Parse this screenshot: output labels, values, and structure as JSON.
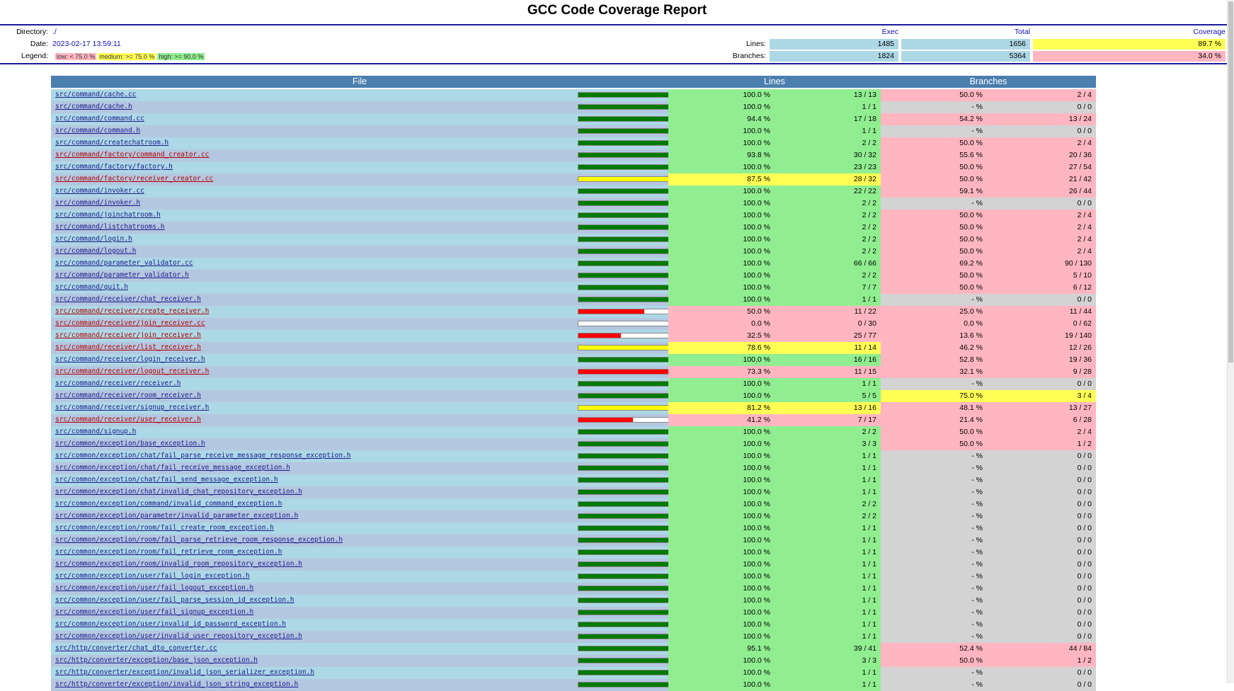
{
  "title": "GCC Code Coverage Report",
  "summary": {
    "directory_label": "Directory:",
    "directory": "./",
    "date_label": "Date:",
    "date": "2023-02-17 13:59:11",
    "legend_label": "Legend:",
    "legend_low": "low: < 75.0 %",
    "legend_medium": "medium: >= 75.0 %",
    "legend_high": "high: >= 90.0 %",
    "col_exec": "Exec",
    "col_total": "Total",
    "col_coverage": "Coverage",
    "lines_label": "Lines:",
    "lines_exec": "1485",
    "lines_total": "1656",
    "lines_cov": "89.7 %",
    "branches_label": "Branches:",
    "branches_exec": "1824",
    "branches_total": "5364",
    "branches_cov": "34.0 %"
  },
  "table_header": {
    "file": "File",
    "lines": "Lines",
    "branches": "Branches"
  },
  "colors": {
    "high": "#90ee90",
    "medium": "#ffff55",
    "low": "#ffb6c1",
    "none": "#d3d3d3",
    "header": "#4a7fae"
  },
  "rows": [
    {
      "file": "src/command/cache.cc",
      "lp": "100.0 %",
      "lr": "13 / 13",
      "bp": "50.0 %",
      "br": "2 / 4",
      "lvl": "high",
      "blvl": "low",
      "bar": 100
    },
    {
      "file": "src/command/cache.h",
      "lp": "100.0 %",
      "lr": "1 / 1",
      "bp": "- %",
      "br": "0 / 0",
      "lvl": "high",
      "blvl": "none",
      "bar": 100
    },
    {
      "file": "src/command/command.cc",
      "lp": "94.4 %",
      "lr": "17 / 18",
      "bp": "54.2 %",
      "br": "13 / 24",
      "lvl": "high",
      "blvl": "low",
      "bar": 94.4
    },
    {
      "file": "src/command/command.h",
      "lp": "100.0 %",
      "lr": "1 / 1",
      "bp": "- %",
      "br": "0 / 0",
      "lvl": "high",
      "blvl": "none",
      "bar": 100
    },
    {
      "file": "src/command/createchatroom.h",
      "lp": "100.0 %",
      "lr": "2 / 2",
      "bp": "50.0 %",
      "br": "2 / 4",
      "lvl": "high",
      "blvl": "low",
      "bar": 100
    },
    {
      "file": "src/command/factory/command_creator.cc",
      "lp": "93.8 %",
      "lr": "30 / 32",
      "bp": "55.6 %",
      "br": "20 / 36",
      "lvl": "high",
      "blvl": "low",
      "bar": 93.8,
      "red": true
    },
    {
      "file": "src/command/factory/factory.h",
      "lp": "100.0 %",
      "lr": "23 / 23",
      "bp": "50.0 %",
      "br": "27 / 54",
      "lvl": "high",
      "blvl": "low",
      "bar": 100
    },
    {
      "file": "src/command/factory/receiver_creator.cc",
      "lp": "87.5 %",
      "lr": "28 / 32",
      "bp": "50.0 %",
      "br": "21 / 42",
      "lvl": "medium",
      "blvl": "low",
      "bar": 87.5,
      "red": true
    },
    {
      "file": "src/command/invoker.cc",
      "lp": "100.0 %",
      "lr": "22 / 22",
      "bp": "59.1 %",
      "br": "26 / 44",
      "lvl": "high",
      "blvl": "low",
      "bar": 100
    },
    {
      "file": "src/command/invoker.h",
      "lp": "100.0 %",
      "lr": "2 / 2",
      "bp": "- %",
      "br": "0 / 0",
      "lvl": "high",
      "blvl": "none",
      "bar": 100
    },
    {
      "file": "src/command/joinchatroom.h",
      "lp": "100.0 %",
      "lr": "2 / 2",
      "bp": "50.0 %",
      "br": "2 / 4",
      "lvl": "high",
      "blvl": "low",
      "bar": 100
    },
    {
      "file": "src/command/listchatrooms.h",
      "lp": "100.0 %",
      "lr": "2 / 2",
      "bp": "50.0 %",
      "br": "2 / 4",
      "lvl": "high",
      "blvl": "low",
      "bar": 100
    },
    {
      "file": "src/command/login.h",
      "lp": "100.0 %",
      "lr": "2 / 2",
      "bp": "50.0 %",
      "br": "2 / 4",
      "lvl": "high",
      "blvl": "low",
      "bar": 100
    },
    {
      "file": "src/command/logout.h",
      "lp": "100.0 %",
      "lr": "2 / 2",
      "bp": "50.0 %",
      "br": "2 / 4",
      "lvl": "high",
      "blvl": "low",
      "bar": 100
    },
    {
      "file": "src/command/parameter_validator.cc",
      "lp": "100.0 %",
      "lr": "66 / 66",
      "bp": "69.2 %",
      "br": "90 / 130",
      "lvl": "high",
      "blvl": "low",
      "bar": 100
    },
    {
      "file": "src/command/parameter_validator.h",
      "lp": "100.0 %",
      "lr": "2 / 2",
      "bp": "50.0 %",
      "br": "5 / 10",
      "lvl": "high",
      "blvl": "low",
      "bar": 100
    },
    {
      "file": "src/command/quit.h",
      "lp": "100.0 %",
      "lr": "7 / 7",
      "bp": "50.0 %",
      "br": "6 / 12",
      "lvl": "high",
      "blvl": "low",
      "bar": 100
    },
    {
      "file": "src/command/receiver/chat_receiver.h",
      "lp": "100.0 %",
      "lr": "1 / 1",
      "bp": "- %",
      "br": "0 / 0",
      "lvl": "high",
      "blvl": "none",
      "bar": 100
    },
    {
      "file": "src/command/receiver/create_receiver.h",
      "lp": "50.0 %",
      "lr": "11 / 22",
      "bp": "25.0 %",
      "br": "11 / 44",
      "lvl": "low",
      "blvl": "low",
      "bar": 50,
      "red": true
    },
    {
      "file": "src/command/receiver/join_receiver.cc",
      "lp": "0.0 %",
      "lr": "0 / 30",
      "bp": "0.0 %",
      "br": "0 / 62",
      "lvl": "low",
      "blvl": "low",
      "bar": 0,
      "red": true
    },
    {
      "file": "src/command/receiver/join_receiver.h",
      "lp": "32.5 %",
      "lr": "25 / 77",
      "bp": "13.6 %",
      "br": "19 / 140",
      "lvl": "low",
      "blvl": "low",
      "bar": 32.5,
      "red": true
    },
    {
      "file": "src/command/receiver/list_receiver.h",
      "lp": "78.6 %",
      "lr": "11 / 14",
      "bp": "46.2 %",
      "br": "12 / 26",
      "lvl": "medium",
      "blvl": "low",
      "bar": 78.6,
      "red": true
    },
    {
      "file": "src/command/receiver/login_receiver.h",
      "lp": "100.0 %",
      "lr": "16 / 16",
      "bp": "52.8 %",
      "br": "19 / 36",
      "lvl": "high",
      "blvl": "low",
      "bar": 100
    },
    {
      "file": "src/command/receiver/logout_receiver.h",
      "lp": "73.3 %",
      "lr": "11 / 15",
      "bp": "32.1 %",
      "br": "9 / 28",
      "lvl": "low",
      "blvl": "low",
      "bar": 73.3,
      "red": true
    },
    {
      "file": "src/command/receiver/receiver.h",
      "lp": "100.0 %",
      "lr": "1 / 1",
      "bp": "- %",
      "br": "0 / 0",
      "lvl": "high",
      "blvl": "none",
      "bar": 100
    },
    {
      "file": "src/command/receiver/room_receiver.h",
      "lp": "100.0 %",
      "lr": "5 / 5",
      "bp": "75.0 %",
      "br": "3 / 4",
      "lvl": "high",
      "blvl": "medium",
      "bar": 100
    },
    {
      "file": "src/command/receiver/signup_receiver.h",
      "lp": "81.2 %",
      "lr": "13 / 16",
      "bp": "48.1 %",
      "br": "13 / 27",
      "lvl": "medium",
      "blvl": "low",
      "bar": 81.2
    },
    {
      "file": "src/command/receiver/user_receiver.h",
      "lp": "41.2 %",
      "lr": "7 / 17",
      "bp": "21.4 %",
      "br": "6 / 28",
      "lvl": "low",
      "blvl": "low",
      "bar": 41.2,
      "red": true
    },
    {
      "file": "src/command/signup.h",
      "lp": "100.0 %",
      "lr": "2 / 2",
      "bp": "50.0 %",
      "br": "2 / 4",
      "lvl": "high",
      "blvl": "low",
      "bar": 100
    },
    {
      "file": "src/common/exception/base_exception.h",
      "lp": "100.0 %",
      "lr": "3 / 3",
      "bp": "50.0 %",
      "br": "1 / 2",
      "lvl": "high",
      "blvl": "low",
      "bar": 100
    },
    {
      "file": "src/common/exception/chat/fail_parse_receive_message_response_exception.h",
      "lp": "100.0 %",
      "lr": "1 / 1",
      "bp": "- %",
      "br": "0 / 0",
      "lvl": "high",
      "blvl": "none",
      "bar": 100
    },
    {
      "file": "src/common/exception/chat/fail_receive_message_exception.h",
      "lp": "100.0 %",
      "lr": "1 / 1",
      "bp": "- %",
      "br": "0 / 0",
      "lvl": "high",
      "blvl": "none",
      "bar": 100
    },
    {
      "file": "src/common/exception/chat/fail_send_message_exception.h",
      "lp": "100.0 %",
      "lr": "1 / 1",
      "bp": "- %",
      "br": "0 / 0",
      "lvl": "high",
      "blvl": "none",
      "bar": 100
    },
    {
      "file": "src/common/exception/chat/invalid_chat_repository_exception.h",
      "lp": "100.0 %",
      "lr": "1 / 1",
      "bp": "- %",
      "br": "0 / 0",
      "lvl": "high",
      "blvl": "none",
      "bar": 100
    },
    {
      "file": "src/common/exception/command/invalid_command_exception.h",
      "lp": "100.0 %",
      "lr": "2 / 2",
      "bp": "- %",
      "br": "0 / 0",
      "lvl": "high",
      "blvl": "none",
      "bar": 100
    },
    {
      "file": "src/common/exception/parameter/invalid_parameter_exception.h",
      "lp": "100.0 %",
      "lr": "2 / 2",
      "bp": "- %",
      "br": "0 / 0",
      "lvl": "high",
      "blvl": "none",
      "bar": 100
    },
    {
      "file": "src/common/exception/room/fail_create_room_exception.h",
      "lp": "100.0 %",
      "lr": "1 / 1",
      "bp": "- %",
      "br": "0 / 0",
      "lvl": "high",
      "blvl": "none",
      "bar": 100
    },
    {
      "file": "src/common/exception/room/fail_parse_retrieve_room_response_exception.h",
      "lp": "100.0 %",
      "lr": "1 / 1",
      "bp": "- %",
      "br": "0 / 0",
      "lvl": "high",
      "blvl": "none",
      "bar": 100
    },
    {
      "file": "src/common/exception/room/fail_retrieve_room_exception.h",
      "lp": "100.0 %",
      "lr": "1 / 1",
      "bp": "- %",
      "br": "0 / 0",
      "lvl": "high",
      "blvl": "none",
      "bar": 100
    },
    {
      "file": "src/common/exception/room/invalid_room_repository_exception.h",
      "lp": "100.0 %",
      "lr": "1 / 1",
      "bp": "- %",
      "br": "0 / 0",
      "lvl": "high",
      "blvl": "none",
      "bar": 100
    },
    {
      "file": "src/common/exception/user/fail_login_exception.h",
      "lp": "100.0 %",
      "lr": "1 / 1",
      "bp": "- %",
      "br": "0 / 0",
      "lvl": "high",
      "blvl": "none",
      "bar": 100
    },
    {
      "file": "src/common/exception/user/fail_logout_exception.h",
      "lp": "100.0 %",
      "lr": "1 / 1",
      "bp": "- %",
      "br": "0 / 0",
      "lvl": "high",
      "blvl": "none",
      "bar": 100
    },
    {
      "file": "src/common/exception/user/fail_parse_session_id_exception.h",
      "lp": "100.0 %",
      "lr": "1 / 1",
      "bp": "- %",
      "br": "0 / 0",
      "lvl": "high",
      "blvl": "none",
      "bar": 100
    },
    {
      "file": "src/common/exception/user/fail_signup_exception.h",
      "lp": "100.0 %",
      "lr": "1 / 1",
      "bp": "- %",
      "br": "0 / 0",
      "lvl": "high",
      "blvl": "none",
      "bar": 100
    },
    {
      "file": "src/common/exception/user/invalid_id_password_exception.h",
      "lp": "100.0 %",
      "lr": "1 / 1",
      "bp": "- %",
      "br": "0 / 0",
      "lvl": "high",
      "blvl": "none",
      "bar": 100
    },
    {
      "file": "src/common/exception/user/invalid_user_repository_exception.h",
      "lp": "100.0 %",
      "lr": "1 / 1",
      "bp": "- %",
      "br": "0 / 0",
      "lvl": "high",
      "blvl": "none",
      "bar": 100
    },
    {
      "file": "src/http/converter/chat_dto_converter.cc",
      "lp": "95.1 %",
      "lr": "39 / 41",
      "bp": "52.4 %",
      "br": "44 / 84",
      "lvl": "high",
      "blvl": "low",
      "bar": 95.1
    },
    {
      "file": "src/http/converter/exception/base_json_exception.h",
      "lp": "100.0 %",
      "lr": "3 / 3",
      "bp": "50.0 %",
      "br": "1 / 2",
      "lvl": "high",
      "blvl": "low",
      "bar": 100
    },
    {
      "file": "src/http/converter/exception/invalid_json_serializer_exception.h",
      "lp": "100.0 %",
      "lr": "1 / 1",
      "bp": "- %",
      "br": "0 / 0",
      "lvl": "high",
      "blvl": "none",
      "bar": 100
    },
    {
      "file": "src/http/converter/exception/invalid_json_string_exception.h",
      "lp": "100.0 %",
      "lr": "1 / 1",
      "bp": "- %",
      "br": "0 / 0",
      "lvl": "high",
      "blvl": "none",
      "bar": 100
    }
  ]
}
